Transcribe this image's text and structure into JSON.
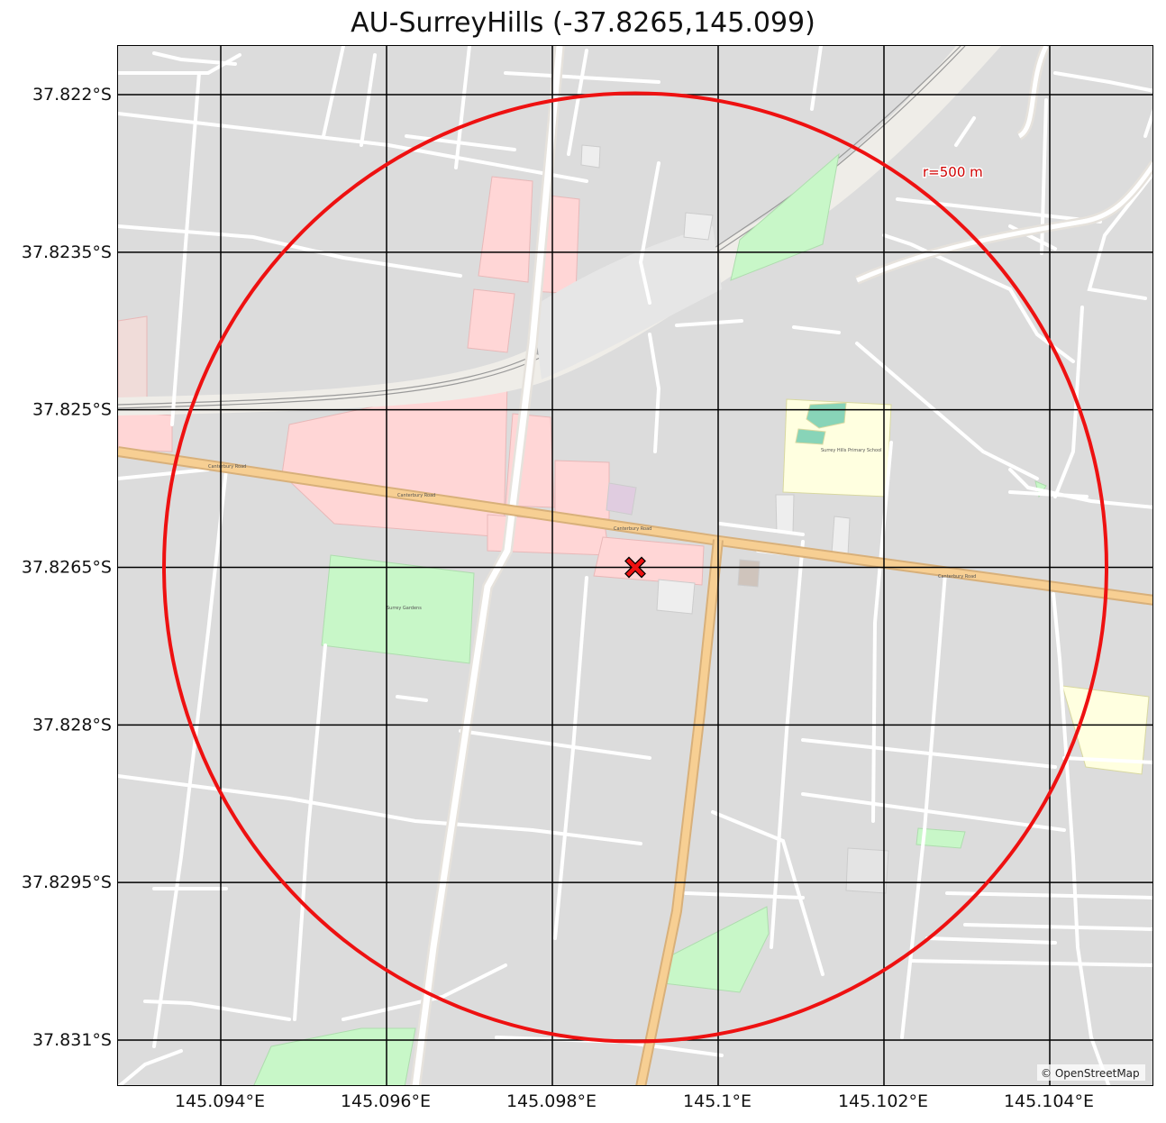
{
  "title": "AU-SurreyHills (-37.8265,145.099)",
  "center": {
    "lat": -37.8265,
    "lon": 145.099
  },
  "radius_label": "r=500 m",
  "attribution": "© OpenStreetMap",
  "grid": {
    "lon_ticks": [
      {
        "value": 145.094,
        "label": "145.094°E"
      },
      {
        "value": 145.096,
        "label": "145.096°E"
      },
      {
        "value": 145.098,
        "label": "145.098°E"
      },
      {
        "value": 145.1,
        "label": "145.1°E"
      },
      {
        "value": 145.102,
        "label": "145.102°E"
      },
      {
        "value": 145.104,
        "label": "145.104°E"
      }
    ],
    "lat_ticks": [
      {
        "value": -37.822,
        "label": "37.822°S"
      },
      {
        "value": -37.8235,
        "label": "37.8235°S"
      },
      {
        "value": -37.825,
        "label": "37.825°S"
      },
      {
        "value": -37.8265,
        "label": "37.8265°S"
      },
      {
        "value": -37.828,
        "label": "37.828°S"
      },
      {
        "value": -37.8295,
        "label": "37.8295°S"
      },
      {
        "value": -37.831,
        "label": "37.831°S"
      }
    ]
  },
  "colors": {
    "circle": "#ee1111",
    "marker": "#ee1111",
    "grid": "#000000",
    "land": "#dcdcdc",
    "road": "#ffffff",
    "main_road": "#f7cf93",
    "commercial": "#ffd6d6",
    "park": "#c8f7c8",
    "school": "#ffffe0",
    "rail_corridor": "#efede8"
  },
  "map_labels": {
    "main_road": "Canterbury Road",
    "school": "Surrey Hills Primary School",
    "park": "Surrey Gardens"
  }
}
